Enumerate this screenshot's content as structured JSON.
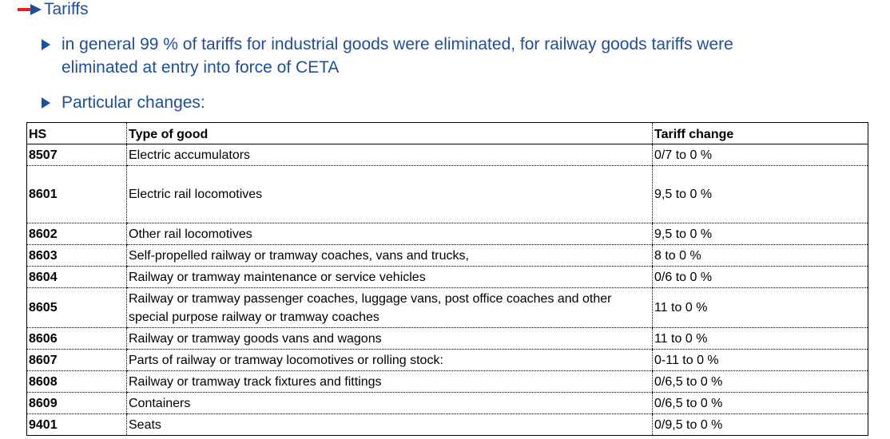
{
  "heading": {
    "title": "Tariffs"
  },
  "bullets": [
    {
      "text": "in general 99 % of tariffs for industrial goods were eliminated, for railway goods tariffs were eliminated at entry into force of CETA"
    },
    {
      "text": "Particular changes:"
    }
  ],
  "table": {
    "columns": [
      "HS",
      "Type of good",
      "Tariff change"
    ],
    "rows": [
      {
        "hs": "8507",
        "good": "Electric accumulators",
        "change": "0/7 to 0 %"
      },
      {
        "hs": "8601",
        "good": "Electric rail locomotives",
        "change": "9,5 to 0 %"
      },
      {
        "hs": "8602",
        "good": "Other rail locomotives",
        "change": "9,5 to 0 %"
      },
      {
        "hs": "8603",
        "good": "Self-propelled railway or tramway coaches, vans and trucks,",
        "change": "8 to 0 %"
      },
      {
        "hs": "8604",
        "good": "Railway or tramway maintenance or service vehicles",
        "change": "0/6 to 0 %"
      },
      {
        "hs": "8605",
        "good": "Railway or tramway passenger coaches, luggage vans, post office coaches and other special purpose railway or tramway coaches",
        "change": "11 to 0 %"
      },
      {
        "hs": "8606",
        "good": "Railway or tramway goods vans and wagons",
        "change": "11 to 0 %"
      },
      {
        "hs": "8607",
        "good": "Parts of railway or tramway locomotives or rolling stock:",
        "change": "0-11 to 0 %"
      },
      {
        "hs": "8608",
        "good": "Railway or tramway track fixtures and fittings",
        "change": "0/6,5 to 0 %"
      },
      {
        "hs": "8609",
        "good": "Containers",
        "change": "0/6,5 to 0 %"
      },
      {
        "hs": "9401",
        "good": "Seats",
        "change": "0/9,5 to 0 %"
      }
    ]
  }
}
